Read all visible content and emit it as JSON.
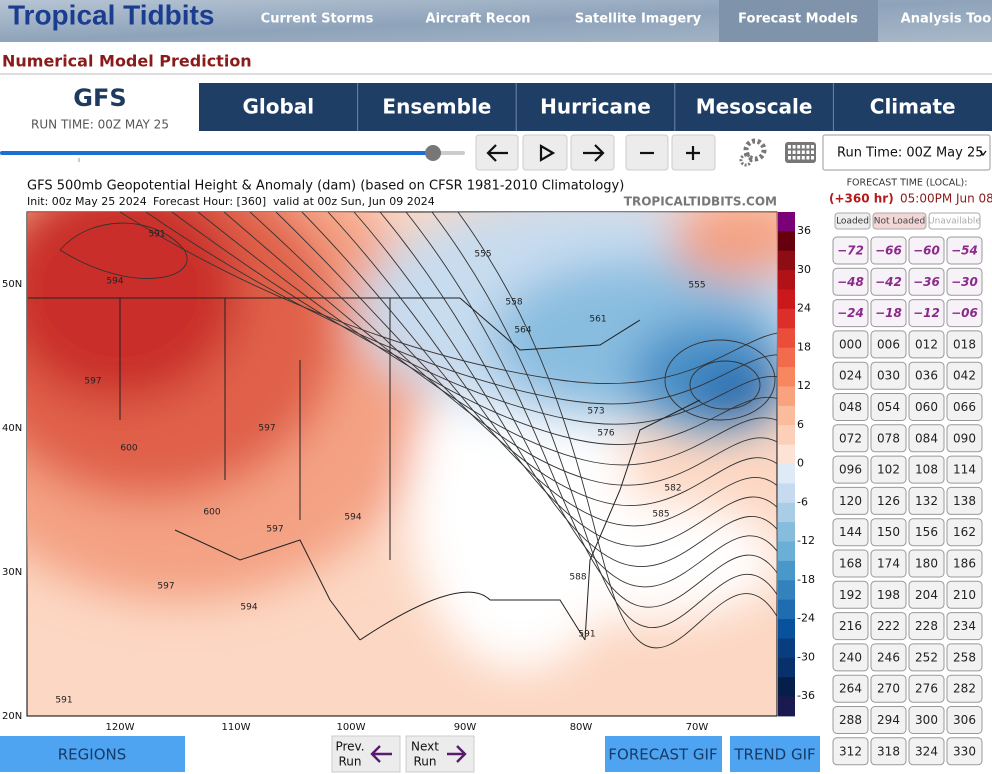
{
  "header": {
    "logo": "Tropical Tidbits",
    "nav": [
      "Current Storms",
      "Aircraft Recon",
      "Satellite Imagery",
      "Forecast Models",
      "Analysis Tools"
    ]
  },
  "page_title": "Numerical Model Prediction",
  "model": {
    "name": "GFS",
    "run_time": "RUN TIME: 00Z MAY 25"
  },
  "tabs": [
    "Global",
    "Ensemble",
    "Hurricane",
    "Mesoscale",
    "Climate"
  ],
  "controls": {
    "run_select": "Run Time: 00Z May 25"
  },
  "map": {
    "title": "GFS 500mb Geopotential Height & Anomaly (dam) (based on CFSR 1981-2010 Climatology)",
    "init": "Init: 00z May 25 2024",
    "forecast_hour": "Forecast Hour: [360]",
    "valid": "valid at 00z Sun, Jun 09 2024",
    "watermark": "TROPICALTIDBITS.COM",
    "lat_labels": [
      "50N",
      "40N",
      "30N",
      "20N"
    ],
    "lon_labels": [
      "120W",
      "110W",
      "100W",
      "90W",
      "80W",
      "70W"
    ],
    "colorbar_ticks": [
      36,
      30,
      24,
      18,
      12,
      6,
      0,
      -6,
      -12,
      -18,
      -24,
      -30,
      -36
    ],
    "contour_labels": [
      "591",
      "594",
      "597",
      "600",
      "600",
      "597",
      "597",
      "594",
      "597",
      "594",
      "591",
      "555",
      "558",
      "564",
      "561",
      "555",
      "573",
      "576",
      "582",
      "585",
      "588",
      "591"
    ]
  },
  "forecast_panel": {
    "heading": "FORECAST TIME (LOCAL):",
    "hour": "(+360 hr)",
    "time": "05:00PM Jun 08",
    "legend": [
      "Loaded",
      "Not Loaded",
      "Unavailable"
    ],
    "hours": [
      "−72",
      "−66",
      "−60",
      "−54",
      "−48",
      "−42",
      "−36",
      "−30",
      "−24",
      "−18",
      "−12",
      "−06",
      "000",
      "006",
      "012",
      "018",
      "024",
      "030",
      "036",
      "042",
      "048",
      "054",
      "060",
      "066",
      "072",
      "078",
      "084",
      "090",
      "096",
      "102",
      "108",
      "114",
      "120",
      "126",
      "132",
      "138",
      "144",
      "150",
      "156",
      "162",
      "168",
      "174",
      "180",
      "186",
      "192",
      "198",
      "204",
      "210",
      "216",
      "222",
      "228",
      "234",
      "240",
      "246",
      "252",
      "258",
      "264",
      "270",
      "276",
      "282",
      "288",
      "294",
      "300",
      "306",
      "312",
      "318",
      "324",
      "330"
    ]
  },
  "footer": {
    "regions": "REGIONS",
    "prev": [
      "Prev.",
      "Run"
    ],
    "next": [
      "Next",
      "Run"
    ],
    "forecast_gif": "FORECAST GIF",
    "trend_gif": "TREND GIF"
  }
}
